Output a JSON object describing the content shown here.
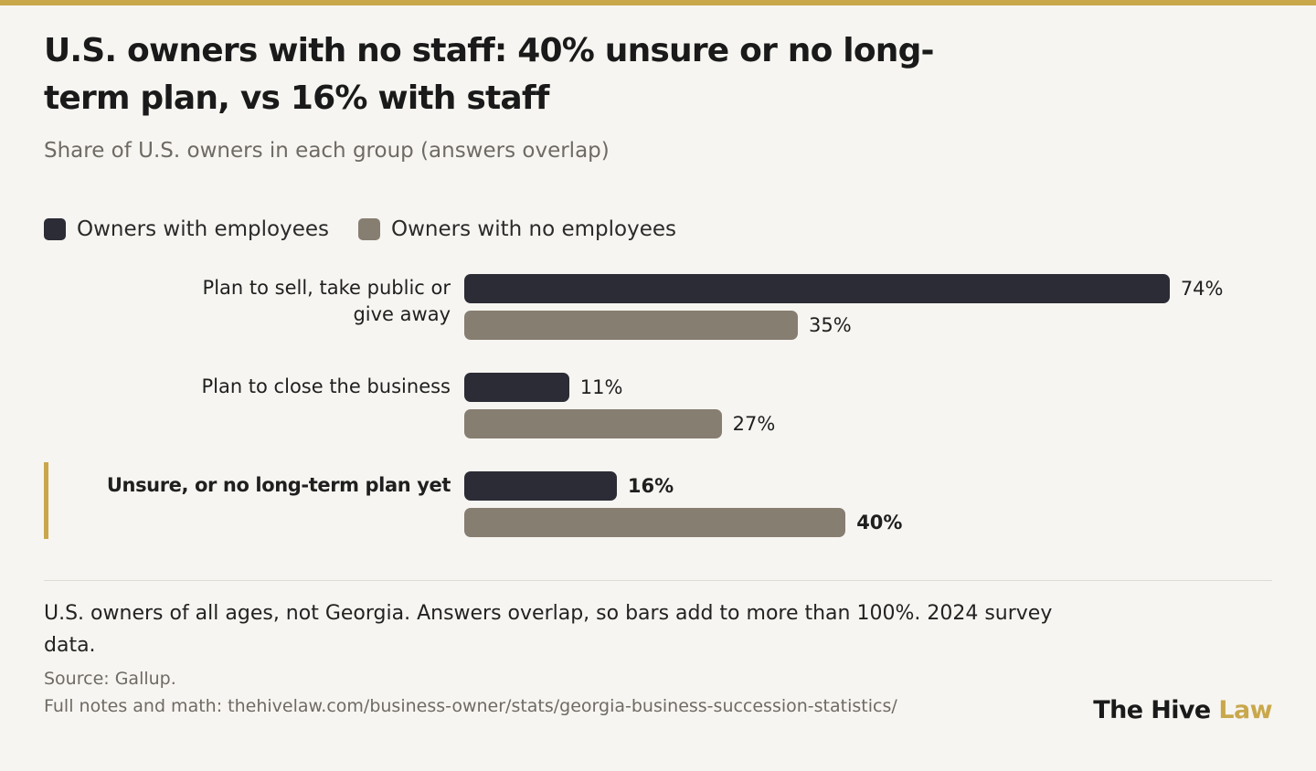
{
  "title": "U.S. owners with no staff: 40% unsure or no long-term plan, vs 16% with staff",
  "subtitle": "Share of U.S. owners in each group (answers overlap)",
  "colors": {
    "accent": "#c9a84c",
    "with_employees": "#2b2c35",
    "no_employees": "#877e72"
  },
  "chart_data": {
    "type": "bar",
    "orientation": "horizontal",
    "categories": [
      "Plan to sell, take public or give away",
      "Plan to close the business",
      "Unsure, or no long-term plan yet"
    ],
    "series": [
      {
        "name": "Owners with employees",
        "values": [
          74,
          11,
          16
        ],
        "value_labels": [
          "74%",
          "11%",
          "16%"
        ]
      },
      {
        "name": "Owners with no employees",
        "values": [
          35,
          27,
          40
        ],
        "value_labels": [
          "35%",
          "27%",
          "40%"
        ]
      }
    ],
    "highlighted_category": "Unsure, or no long-term plan yet",
    "xlim": [
      0,
      100
    ],
    "legend_position": "top-left",
    "grid": false
  },
  "note": "U.S. owners of all ages, not Georgia. Answers overlap, so bars add to more than 100%. 2024 survey data.",
  "source": "Source: Gallup.",
  "full_notes": "Full notes and math: thehivelaw.com/business-owner/stats/georgia-business-succession-statistics/",
  "brand": {
    "part1": "The Hive",
    "part2": "Law"
  }
}
